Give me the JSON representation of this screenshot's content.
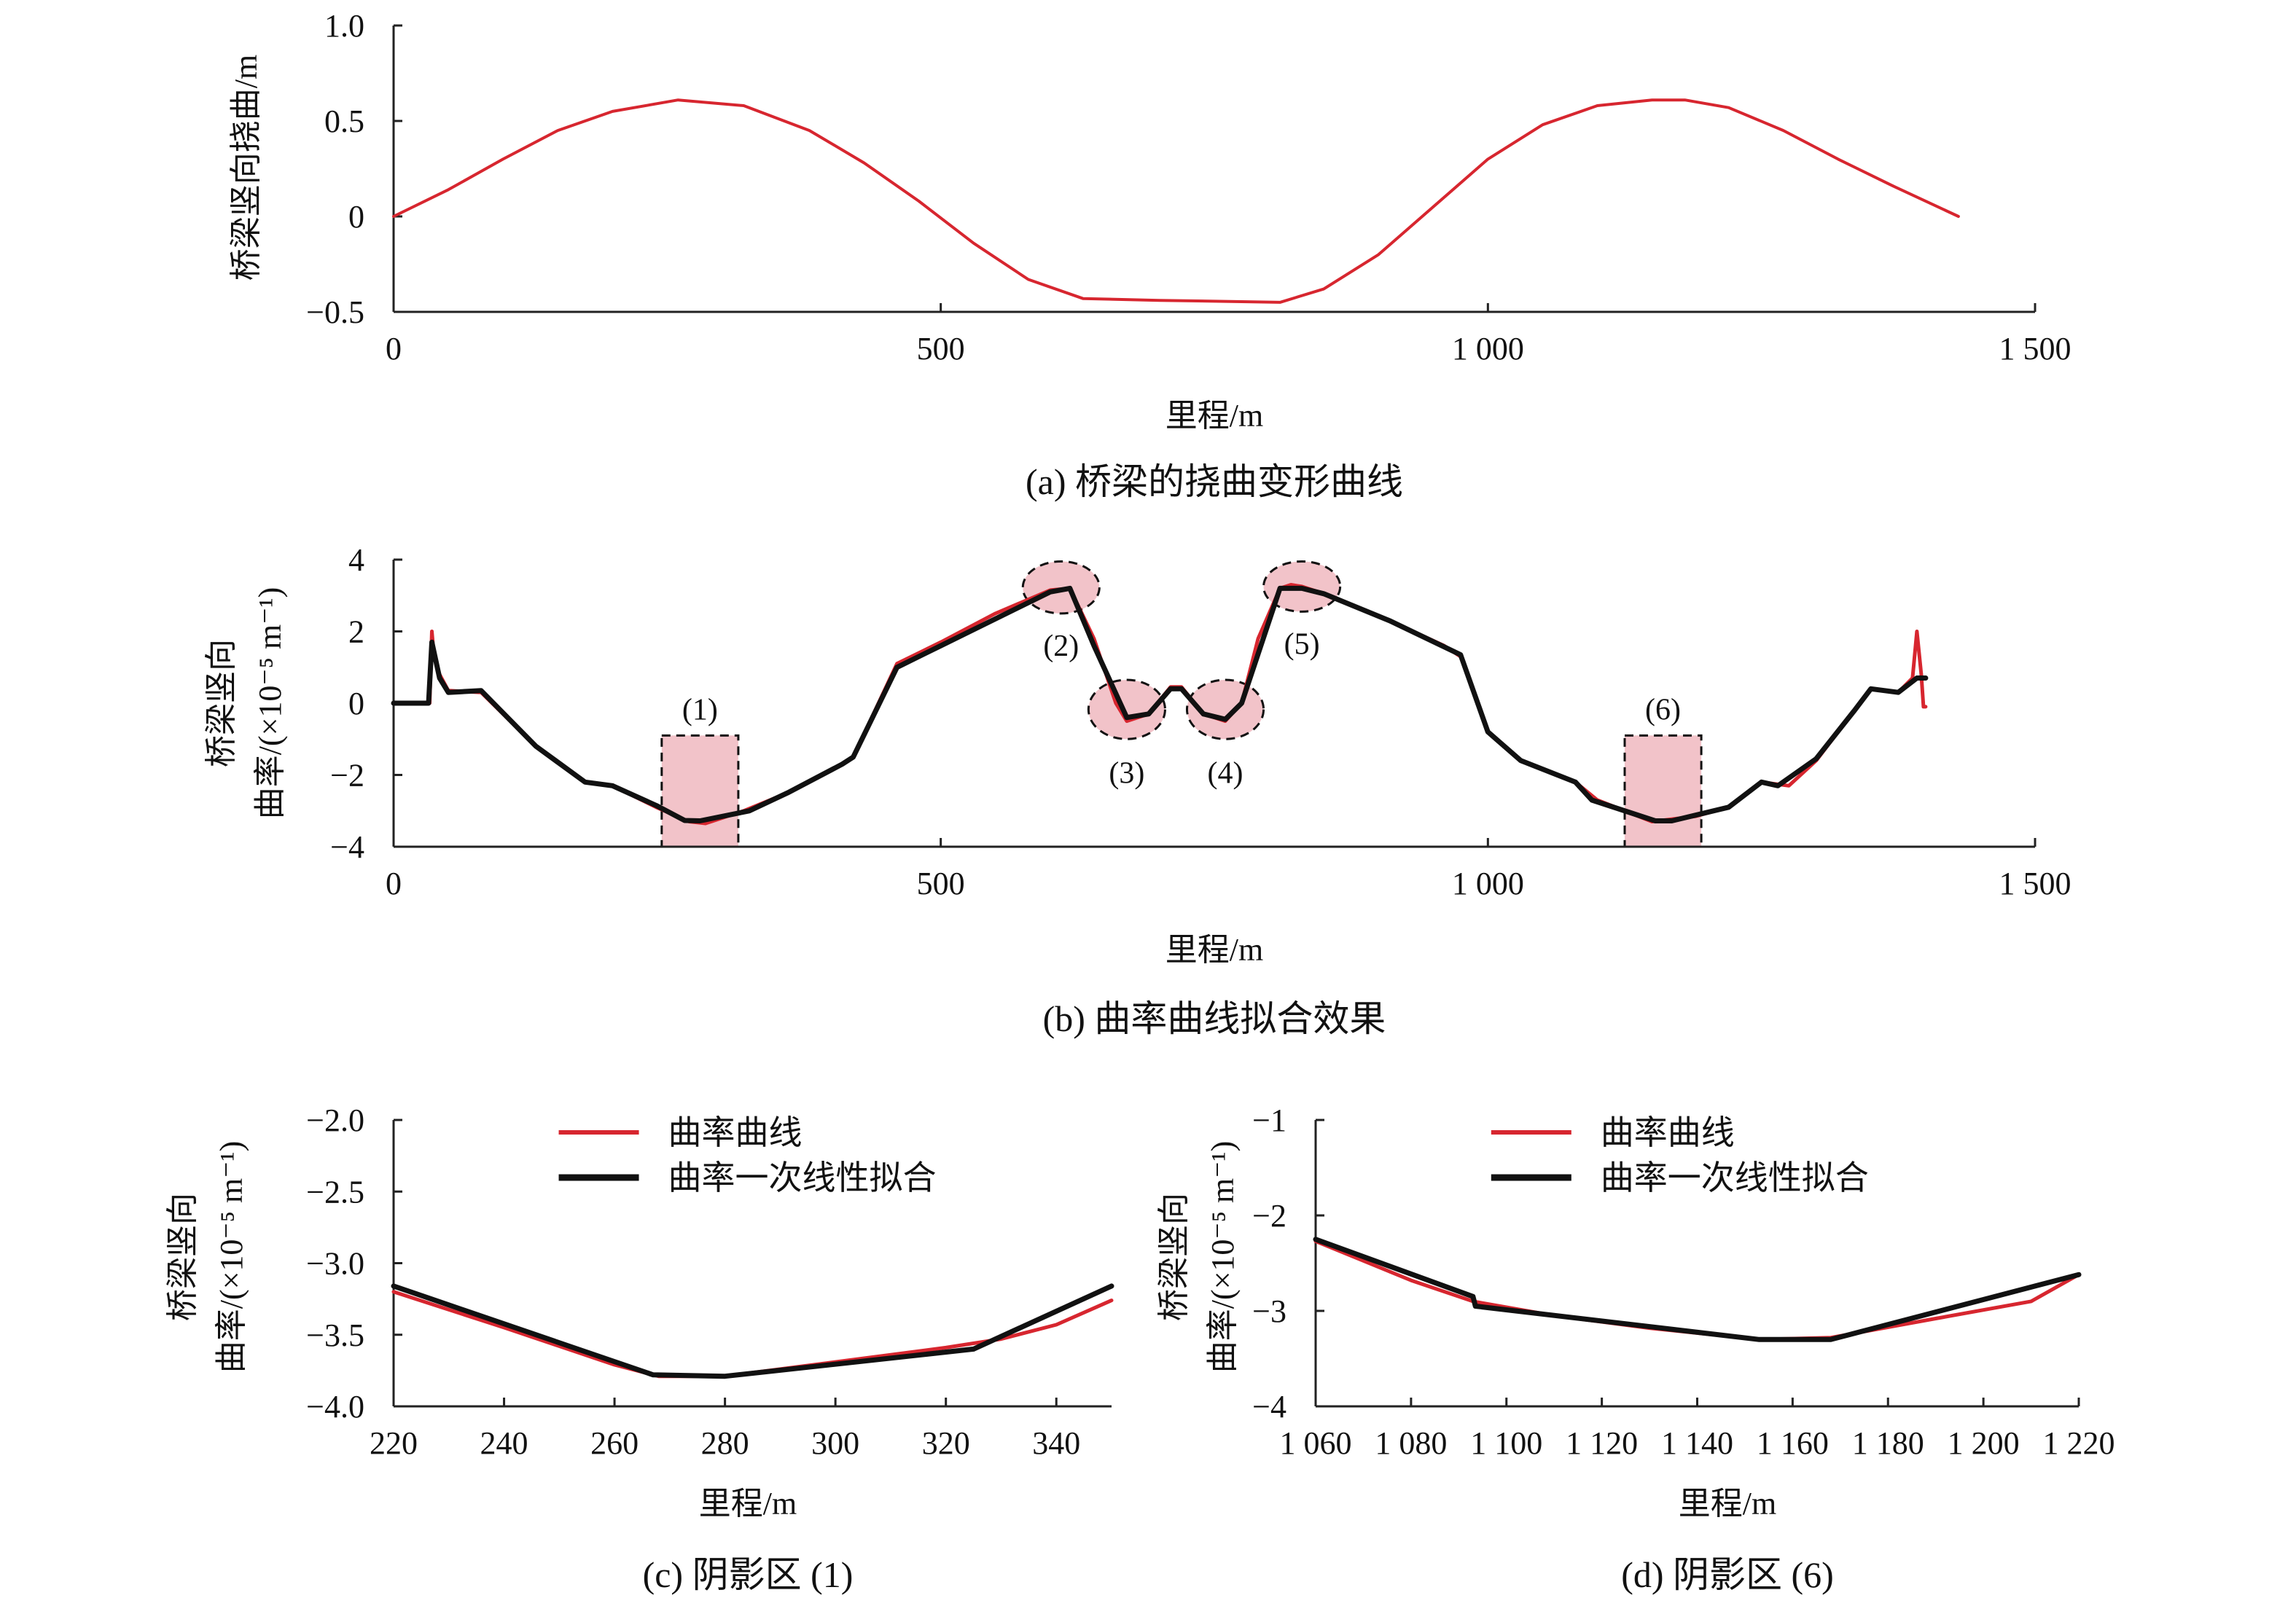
{
  "colors": {
    "red": "#d7262f",
    "black": "#111111",
    "shade": "#f2c3c9",
    "axis": "#222222"
  },
  "panels": {
    "a": {
      "caption": "(a) 桥梁的挠曲变形曲线",
      "chart_data": {
        "type": "line",
        "title": "(a) 桥梁的挠曲变形曲线",
        "xlabel": "里程/m",
        "ylabel": "桥梁竖向挠曲/m",
        "xlim": [
          0,
          1500
        ],
        "ylim": [
          -0.5,
          1.0
        ],
        "xticks": [
          0,
          500,
          1000,
          1500
        ],
        "xtick_labels": [
          "0",
          "500",
          "1 000",
          "1 500"
        ],
        "yticks": [
          1.0,
          0.5,
          0,
          -0.5
        ],
        "ytick_labels": [
          "1.0",
          "0.5",
          "0",
          "−0.5"
        ],
        "series": [
          {
            "name": "桥梁竖向挠曲",
            "color": "#d7262f",
            "x": [
              0,
              50,
              100,
              150,
              200,
              260,
              320,
              380,
              430,
              480,
              530,
              580,
              630,
              700,
              760,
              810,
              850,
              900,
              950,
              1000,
              1050,
              1100,
              1150,
              1180,
              1220,
              1270,
              1320,
              1370,
              1430
            ],
            "y": [
              0.0,
              0.14,
              0.3,
              0.45,
              0.55,
              0.61,
              0.58,
              0.45,
              0.28,
              0.08,
              -0.14,
              -0.33,
              -0.43,
              -0.44,
              -0.445,
              -0.45,
              -0.38,
              -0.2,
              0.05,
              0.3,
              0.48,
              0.58,
              0.61,
              0.61,
              0.57,
              0.45,
              0.3,
              0.16,
              0.0
            ]
          }
        ]
      }
    },
    "b": {
      "caption": "(b) 曲率曲线拟合效果",
      "chart_data": {
        "type": "line",
        "title": "(b) 曲率曲线拟合效果",
        "xlabel": "里程/m",
        "ylabel_line1": "桥梁竖向",
        "ylabel_line2": "曲率/(×10⁻⁵ m⁻¹)",
        "xlim": [
          0,
          1500
        ],
        "ylim": [
          -4,
          4
        ],
        "xticks": [
          0,
          500,
          1000,
          1500
        ],
        "xtick_labels": [
          "0",
          "500",
          "1 000",
          "1 500"
        ],
        "yticks": [
          4,
          2,
          0,
          -2,
          -4
        ],
        "ytick_labels": [
          "4",
          "2",
          "0",
          "−2",
          "−4"
        ],
        "series": [
          {
            "name": "曲率曲线",
            "color": "#d7262f",
            "x": [
              0,
              33,
              35,
              37,
              42,
              50,
              80,
              130,
              175,
              200,
              240,
              270,
              285,
              320,
              360,
              410,
              420,
              460,
              500,
              550,
              600,
              618,
              640,
              660,
              670,
              690,
              710,
              720,
              740,
              760,
              775,
              790,
              810,
              820,
              830,
              845,
              870,
              910,
              960,
              975,
              1000,
              1030,
              1080,
              1100,
              1150,
              1190,
              1220,
              1250,
              1275,
              1300,
              1335,
              1350,
              1375,
              1388,
              1392,
              1396,
              1398,
              1400
            ],
            "y": [
              0,
              0,
              2.0,
              1.3,
              0.8,
              0.35,
              0.3,
              -1.2,
              -2.2,
              -2.3,
              -2.9,
              -3.3,
              -3.35,
              -3.0,
              -2.5,
              -1.7,
              -1.5,
              1.1,
              1.7,
              2.5,
              3.15,
              3.2,
              1.8,
              0.0,
              -0.5,
              -0.3,
              0.45,
              0.45,
              -0.3,
              -0.5,
              0.0,
              1.8,
              3.2,
              3.3,
              3.25,
              3.1,
              2.8,
              2.3,
              1.6,
              1.3,
              -0.8,
              -1.6,
              -2.2,
              -2.7,
              -3.3,
              -3.15,
              -2.9,
              -2.2,
              -2.3,
              -1.6,
              -0.2,
              0.4,
              0.3,
              0.7,
              2.0,
              0.8,
              -0.1,
              -0.1
            ]
          },
          {
            "name": "曲率一次线性拟合",
            "color": "#111111",
            "x": [
              0,
              32,
              35,
              42,
              50,
              80,
              130,
              175,
              200,
              240,
              266,
              280,
              325,
              360,
              410,
              420,
              460,
              500,
              600,
              618,
              640,
              670,
              690,
              710,
              720,
              740,
              760,
              775,
              810,
              830,
              850,
              910,
              975,
              1000,
              1030,
              1080,
              1095,
              1153,
              1168,
              1220,
              1250,
              1265,
              1300,
              1335,
              1350,
              1375,
              1392,
              1395,
              1400
            ],
            "y": [
              0,
              0,
              1.7,
              0.7,
              0.3,
              0.35,
              -1.2,
              -2.2,
              -2.3,
              -2.85,
              -3.27,
              -3.28,
              -3.0,
              -2.5,
              -1.7,
              -1.5,
              1.0,
              1.6,
              3.1,
              3.2,
              1.6,
              -0.4,
              -0.3,
              0.4,
              0.4,
              -0.3,
              -0.45,
              0.0,
              3.2,
              3.2,
              3.05,
              2.3,
              1.35,
              -0.8,
              -1.6,
              -2.2,
              -2.7,
              -3.28,
              -3.28,
              -2.9,
              -2.2,
              -2.3,
              -1.55,
              -0.2,
              0.4,
              0.3,
              0.7,
              0.7,
              0.7
            ]
          }
        ],
        "annotations": [
          {
            "label": "(1)",
            "shape": "rect",
            "x_range": [
              245,
              315
            ],
            "y_range": [
              -4.0,
              -0.9
            ]
          },
          {
            "label": "(2)",
            "shape": "ellipse",
            "x_range": [
              575,
              645
            ],
            "y_range": [
              2.5,
              3.95
            ]
          },
          {
            "label": "(3)",
            "shape": "ellipse",
            "x_range": [
              635,
              705
            ],
            "y_range": [
              -1.0,
              0.65
            ]
          },
          {
            "label": "(4)",
            "shape": "ellipse",
            "x_range": [
              725,
              795
            ],
            "y_range": [
              -1.0,
              0.65
            ]
          },
          {
            "label": "(5)",
            "shape": "ellipse",
            "x_range": [
              795,
              865
            ],
            "y_range": [
              2.55,
              3.95
            ]
          },
          {
            "label": "(6)",
            "shape": "rect",
            "x_range": [
              1125,
              1195
            ],
            "y_range": [
              -4.0,
              -0.9
            ]
          }
        ]
      }
    },
    "c": {
      "caption": "(c) 阴影区 (1)",
      "chart_data": {
        "type": "line",
        "title": "(c) 阴影区 (1)",
        "xlabel": "里程/m",
        "ylabel_line1": "桥梁竖向",
        "ylabel_line2": "曲率/(×10⁻⁵ m⁻¹)",
        "xlim": [
          220,
          350
        ],
        "ylim": [
          -4.0,
          -2.0
        ],
        "xticks": [
          220,
          240,
          260,
          280,
          300,
          320,
          340
        ],
        "xtick_labels": [
          "220",
          "240",
          "260",
          "280",
          "300",
          "320",
          "340"
        ],
        "yticks": [
          -2.0,
          -2.5,
          -3.0,
          -3.5,
          -4.0
        ],
        "ytick_labels": [
          "−2.0",
          "−2.5",
          "−3.0",
          "−3.5",
          "−4.0"
        ],
        "legend": [
          "曲率曲线",
          "曲率一次线性拟合"
        ],
        "series": [
          {
            "name": "曲率曲线",
            "color": "#d7262f",
            "x": [
              220,
              240,
              260,
              268,
              280,
              300,
              320,
              330,
              340,
              350
            ],
            "y": [
              -3.2,
              -3.45,
              -3.71,
              -3.79,
              -3.79,
              -3.69,
              -3.59,
              -3.53,
              -3.43,
              -3.26
            ]
          },
          {
            "name": "曲率一次线性拟合",
            "color": "#111111",
            "x": [
              220,
              267,
              280,
              325,
              350
            ],
            "y": [
              -3.16,
              -3.78,
              -3.79,
              -3.6,
              -3.16
            ]
          }
        ]
      }
    },
    "d": {
      "caption": "(d) 阴影区 (6)",
      "chart_data": {
        "type": "line",
        "title": "(d) 阴影区 (6)",
        "xlabel": "里程/m",
        "ylabel_line1": "桥梁竖向",
        "ylabel_line2": "曲率/(×10⁻⁵ m⁻¹)",
        "xlim": [
          1060,
          1220
        ],
        "ylim": [
          -4,
          -1
        ],
        "xticks": [
          1060,
          1080,
          1100,
          1120,
          1140,
          1160,
          1180,
          1200,
          1220
        ],
        "xtick_labels": [
          "1 060",
          "1 080",
          "1 100",
          "1 120",
          "1 140",
          "1 160",
          "1 180",
          "1 200",
          "1 220"
        ],
        "yticks": [
          -1,
          -2,
          -3,
          -4
        ],
        "ytick_labels": [
          "−1",
          "−2",
          "−3",
          "−4"
        ],
        "legend": [
          "曲率曲线",
          "曲率一次线性拟合"
        ],
        "series": [
          {
            "name": "曲率曲线",
            "color": "#d7262f",
            "x": [
              1060,
              1080,
              1093,
              1110,
              1130,
              1153,
              1168,
              1190,
              1210,
              1220
            ],
            "y": [
              -2.27,
              -2.68,
              -2.9,
              -3.05,
              -3.18,
              -3.3,
              -3.28,
              -3.08,
              -2.9,
              -2.62
            ]
          },
          {
            "name": "曲率一次线性拟合",
            "color": "#111111",
            "x": [
              1060,
              1093,
              1093.5,
              1153,
              1168,
              1220
            ],
            "y": [
              -2.25,
              -2.85,
              -2.95,
              -3.3,
              -3.3,
              -2.62
            ]
          }
        ]
      }
    }
  }
}
